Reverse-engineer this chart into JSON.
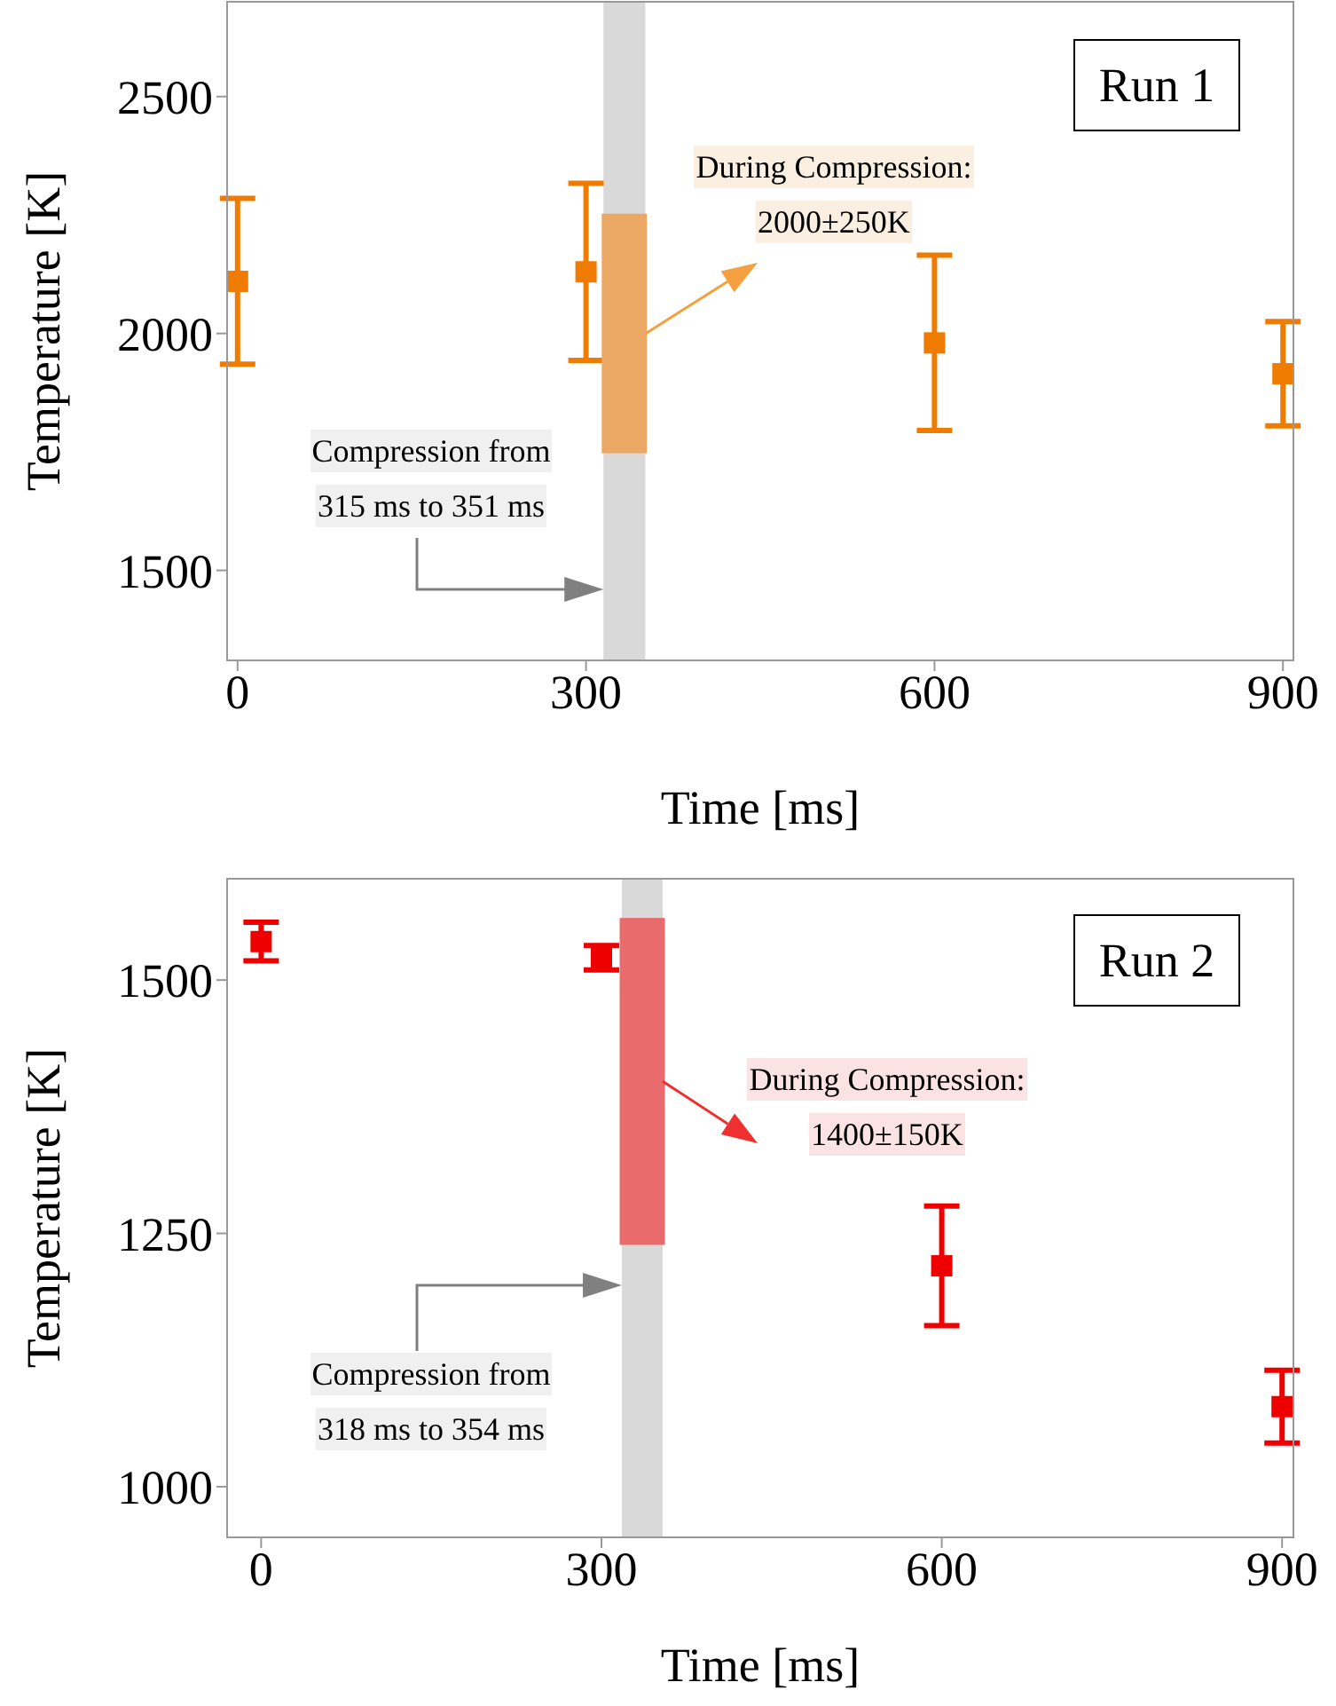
{
  "chart_data": [
    {
      "type": "scatter",
      "title": "Run 1",
      "xlabel": "Time [ms]",
      "ylabel": "Temperature [K]",
      "xlim": [
        -9,
        909
      ],
      "xticks": [
        0,
        300,
        600,
        900
      ],
      "ylim": [
        1310,
        2700
      ],
      "yticks": [
        1500,
        2000,
        2500
      ],
      "marker": "square",
      "grid": false,
      "legend": false,
      "series": [
        {
          "color": "#ef7b00",
          "x": [
            0,
            300,
            600,
            900
          ],
          "values": [
            2110,
            2130,
            1980,
            1915
          ],
          "errors": [
            175,
            187,
            185,
            110
          ]
        },
        {
          "type": "bar",
          "color": "#eba865",
          "x": [
            333
          ],
          "base": [
            1750
          ],
          "values": [
            500
          ]
        }
      ],
      "bands": [
        {
          "axis": "x",
          "from": 315,
          "to": 351,
          "color": "#d9d9d9",
          "label": "Compression from\n315 ms to 351 ms"
        }
      ],
      "annotations": [
        "During Compression:\n2000±250K"
      ]
    },
    {
      "type": "scatter",
      "title": "Run 2",
      "xlabel": "Time [ms]",
      "ylabel": "Temperature [K]",
      "xlim": [
        -30,
        910
      ],
      "xticks": [
        0,
        300,
        600,
        900
      ],
      "ylim": [
        950,
        1600
      ],
      "yticks": [
        1000,
        1250,
        1500
      ],
      "marker": "square",
      "grid": false,
      "legend": false,
      "series": [
        {
          "color": "#ee0000",
          "x": [
            0,
            300,
            600,
            900
          ],
          "values": [
            1538,
            1522,
            1218,
            1079
          ],
          "errors": [
            19,
            12,
            59,
            36
          ]
        },
        {
          "type": "bar",
          "color": "#ea6b6b",
          "x": [
            336
          ],
          "base": [
            1240
          ],
          "values": [
            320
          ]
        }
      ],
      "bands": [
        {
          "axis": "x",
          "from": 318,
          "to": 354,
          "color": "#d9d9d9",
          "label": "Compression from\n318 ms to 354 ms"
        }
      ],
      "annotations": [
        {
          "text": "During Compression:\n1400±150K",
          "x": 354,
          "y": 1400
        }
      ]
    }
  ]
}
